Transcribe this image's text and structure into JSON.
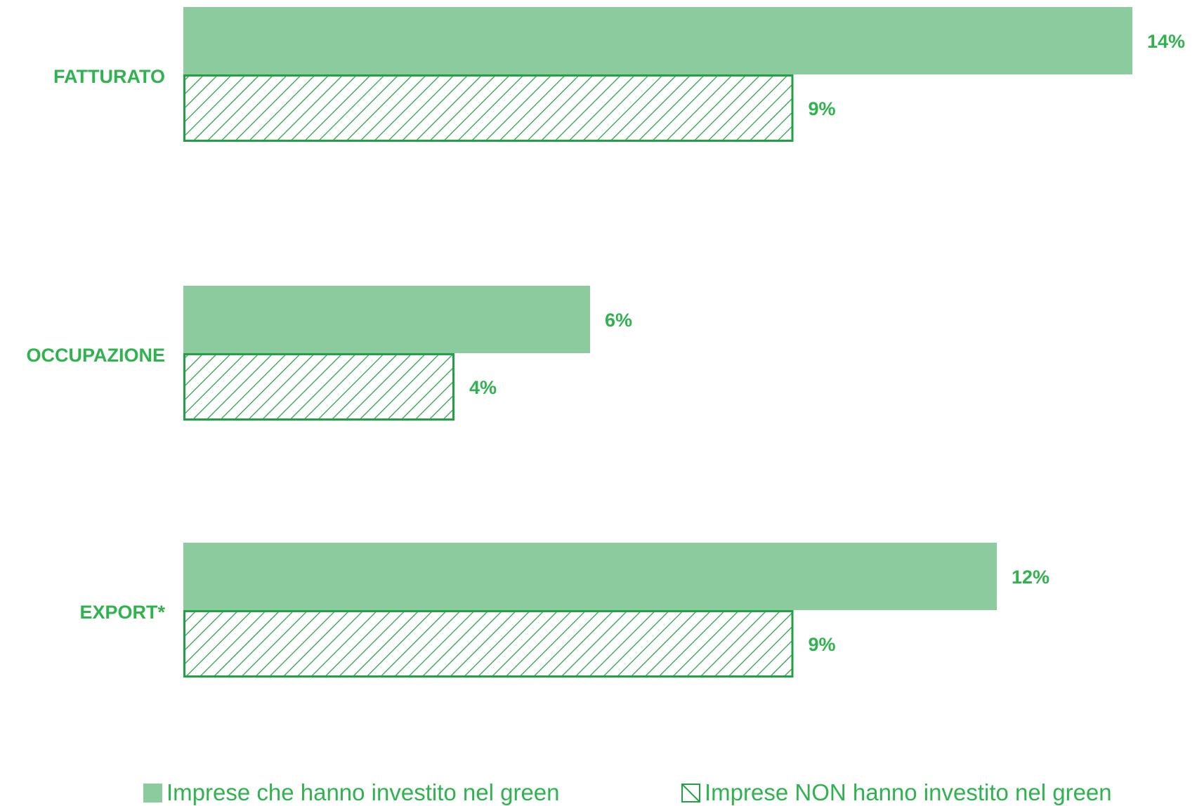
{
  "chart_data": {
    "type": "bar",
    "orientation": "horizontal",
    "categories": [
      "FATTURATO",
      "OCCUPAZIONE",
      "EXPORT*"
    ],
    "series": [
      {
        "name": "Imprese che hanno investito nel green",
        "values": [
          14,
          6,
          12
        ],
        "labels": [
          "14%",
          "6%",
          "12%"
        ],
        "style": "solid"
      },
      {
        "name": "Imprese NON hanno investito nel green",
        "values": [
          9,
          4,
          9
        ],
        "labels": [
          "9%",
          "4%",
          "9%"
        ],
        "style": "hatched"
      }
    ],
    "xlim": [
      0,
      14
    ],
    "grid": false,
    "legend_position": "bottom"
  },
  "colors": {
    "solid_fill": "#8bcb9d",
    "hatch_stroke": "#22a046",
    "text": "#2fb34e"
  },
  "legend": {
    "item1": "Imprese che hanno investito nel green",
    "item2": "Imprese NON hanno investito nel green"
  }
}
